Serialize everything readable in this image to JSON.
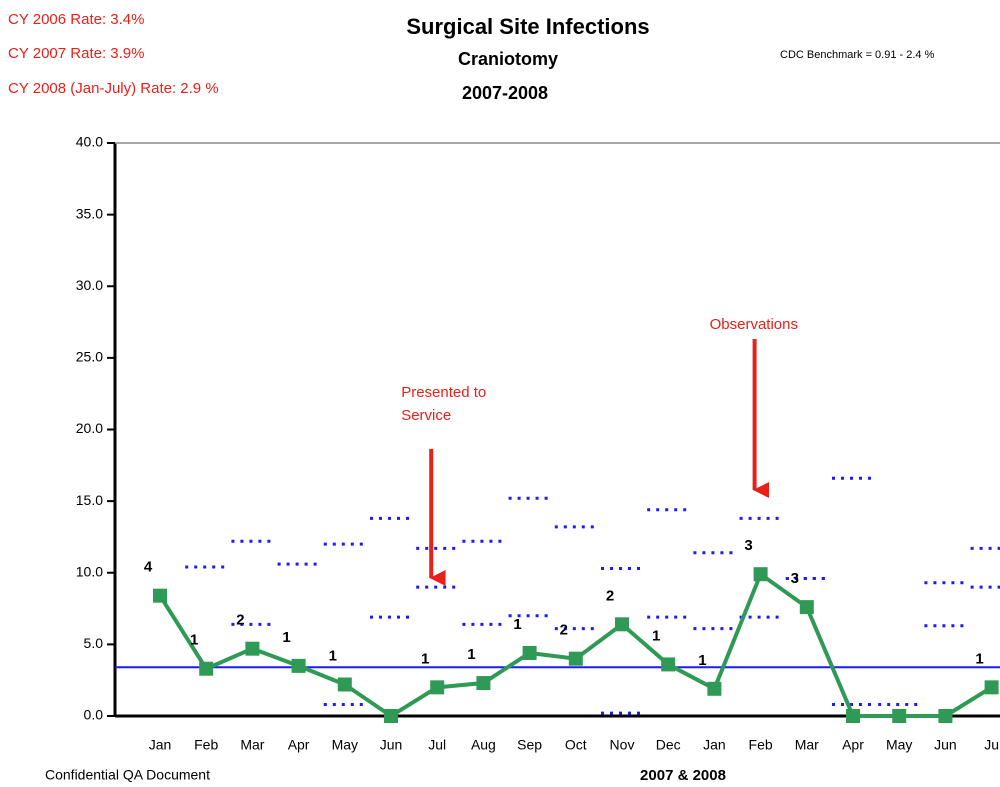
{
  "chart_data": {
    "type": "line",
    "title": "Surgical Site Infections",
    "subtitle": [
      "Craniotomy",
      "2007-2008"
    ],
    "rates": [
      "CY 2006 Rate: 3.4%",
      "CY 2007 Rate: 3.9%",
      "CY 2008 (Jan-July) Rate: 2.9 %"
    ],
    "benchmark_text": "CDC Benchmark = 0.91 - 2.4 %",
    "footer": "Confidential QA Document",
    "x_label": "2007 & 2008",
    "categories": [
      "Jan",
      "Feb",
      "Mar",
      "Apr",
      "May",
      "Jun",
      "Jul",
      "Aug",
      "Sep",
      "Oct",
      "Nov",
      "Dec",
      "Jan",
      "Feb",
      "Mar",
      "Apr",
      "May",
      "Jun",
      "Ju"
    ],
    "series": [
      {
        "color": "#2f9a55",
        "values": [
          8.4,
          3.3,
          4.7,
          3.5,
          2.2,
          0,
          2.0,
          2.3,
          4.4,
          4.0,
          6.4,
          3.6,
          1.9,
          9.9,
          7.6,
          0,
          0,
          0,
          2.0
        ],
        "counts": [
          4,
          1,
          2,
          1,
          1,
          null,
          1,
          1,
          1,
          2,
          2,
          1,
          1,
          3,
          3,
          null,
          null,
          null,
          1
        ]
      },
      {
        "color": "#1a1aff",
        "values": [
          null,
          10.4,
          12.2,
          10.6,
          12.0,
          13.8,
          11.7,
          12.2,
          15.2,
          13.2,
          10.3,
          14.4,
          11.4,
          13.8,
          9.6,
          16.6,
          0.8,
          9.3,
          11.7
        ]
      },
      {
        "color": "#1a1aff",
        "values": [
          null,
          null,
          6.4,
          null,
          0.8,
          6.9,
          9.0,
          6.4,
          7.0,
          6.1,
          0.2,
          6.9,
          6.1,
          6.9,
          9.6,
          0.8,
          null,
          6.3,
          9.0
        ]
      }
    ],
    "benchmark_line": {
      "value": 3.4,
      "color": "#1a1aff"
    },
    "annotations": [
      {
        "text": [
          "Presented to",
          "Service"
        ],
        "at": 6
      },
      {
        "text": [
          "Observations"
        ],
        "at": 13
      }
    ],
    "ylim": [
      0,
      40
    ],
    "yticks": [
      {
        "value": 0,
        "label": "0.0"
      },
      {
        "value": 5,
        "label": "5.0"
      },
      {
        "value": 10,
        "label": "10.0"
      },
      {
        "value": 15,
        "label": "15.0"
      },
      {
        "value": 20,
        "label": "20.0"
      },
      {
        "value": 25,
        "label": "25.0"
      },
      {
        "value": 30,
        "label": "30.0"
      },
      {
        "value": 35,
        "label": "35.0"
      },
      {
        "value": 40,
        "label": "40.0"
      }
    ]
  }
}
